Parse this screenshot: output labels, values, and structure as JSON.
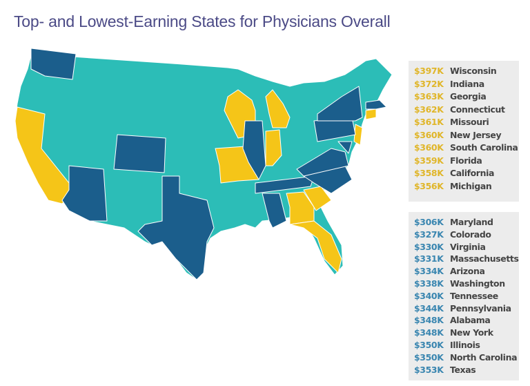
{
  "title": "Top- and Lowest-Earning States for Physicians Overall",
  "colors": {
    "top": "#f5c518",
    "bottom": "#1b5e8c",
    "other": "#2cbdb7",
    "top_text": "#e0b62a",
    "bottom_text": "#3a86b0"
  },
  "top_earning": [
    {
      "value": "$397K",
      "state": "Wisconsin"
    },
    {
      "value": "$372K",
      "state": "Indiana"
    },
    {
      "value": "$363K",
      "state": "Georgia"
    },
    {
      "value": "$362K",
      "state": "Connecticut"
    },
    {
      "value": "$361K",
      "state": "Missouri"
    },
    {
      "value": "$360K",
      "state": "New Jersey"
    },
    {
      "value": "$360K",
      "state": "South Carolina"
    },
    {
      "value": "$359K",
      "state": "Florida"
    },
    {
      "value": "$358K",
      "state": "California"
    },
    {
      "value": "$356K",
      "state": "Michigan"
    }
  ],
  "lowest_earning": [
    {
      "value": "$306K",
      "state": "Maryland"
    },
    {
      "value": "$327K",
      "state": "Colorado"
    },
    {
      "value": "$330K",
      "state": "Virginia"
    },
    {
      "value": "$331K",
      "state": "Massachusetts"
    },
    {
      "value": "$334K",
      "state": "Arizona"
    },
    {
      "value": "$338K",
      "state": "Washington"
    },
    {
      "value": "$340K",
      "state": "Tennessee"
    },
    {
      "value": "$344K",
      "state": "Pennsylvania"
    },
    {
      "value": "$348K",
      "state": "Alabama"
    },
    {
      "value": "$348K",
      "state": "New York"
    },
    {
      "value": "$350K",
      "state": "Illinois"
    },
    {
      "value": "$350K",
      "state": "North Carolina"
    },
    {
      "value": "$353K",
      "state": "Texas"
    }
  ]
}
